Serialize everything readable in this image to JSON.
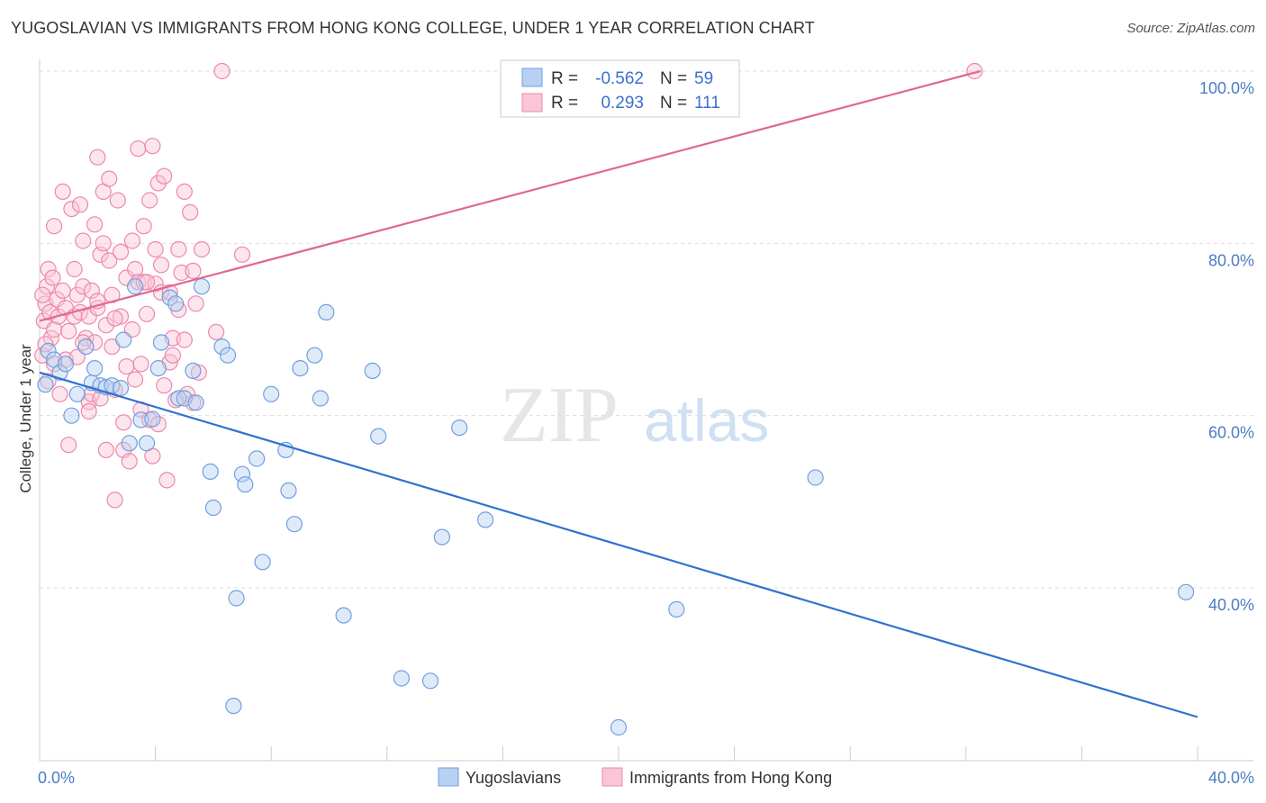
{
  "header": {
    "title": "YUGOSLAVIAN VS IMMIGRANTS FROM HONG KONG COLLEGE, UNDER 1 YEAR CORRELATION CHART",
    "source": "Source: ZipAtlas.com"
  },
  "watermark": {
    "zip": "ZIP",
    "atlas": "atlas"
  },
  "colors": {
    "blue": "#6f9fe0",
    "blue_fill": "#b8d0f2",
    "blue_line": "#2f72d0",
    "pink": "#ee88aa",
    "pink_fill": "#f8c6d6",
    "pink_line": "#e06890",
    "grid": "#dddddd",
    "tick_text": "#4a7cc7"
  },
  "chart_data": {
    "type": "scatter",
    "title": "YUGOSLAVIAN VS IMMIGRANTS FROM HONG KONG COLLEGE, UNDER 1 YEAR CORRELATION CHART",
    "xlabel": "",
    "ylabel": "College, Under 1 year",
    "xlim": [
      0,
      40
    ],
    "ylim": [
      20,
      100
    ],
    "x_tick_labels": [
      "0.0%",
      "40.0%"
    ],
    "y_ticks": [
      40,
      60,
      80,
      100
    ],
    "y_tick_labels": [
      "40.0%",
      "60.0%",
      "80.0%",
      "100.0%"
    ],
    "grid": true,
    "legend": {
      "position": "top-center",
      "rows": [
        {
          "r_label": "R =",
          "r_value": "-0.562",
          "n_label": "N =",
          "n_value": "59"
        },
        {
          "r_label": "R =",
          "r_value": "0.293",
          "n_label": "N =",
          "n_value": "111"
        }
      ]
    },
    "series": [
      {
        "name": "Yugoslavians",
        "color": "#6f9fe0",
        "trend": {
          "x": [
            0,
            40
          ],
          "y": [
            65.0,
            25.0
          ]
        },
        "points": [
          [
            0.3,
            67.5
          ],
          [
            0.5,
            66.5
          ],
          [
            0.7,
            65.0
          ],
          [
            0.9,
            66.0
          ],
          [
            1.1,
            60.0
          ],
          [
            1.3,
            62.5
          ],
          [
            1.6,
            68.0
          ],
          [
            1.8,
            63.8
          ],
          [
            1.9,
            65.5
          ],
          [
            2.1,
            63.5
          ],
          [
            2.3,
            63.3
          ],
          [
            2.5,
            63.5
          ],
          [
            2.8,
            63.2
          ],
          [
            2.9,
            68.8
          ],
          [
            3.1,
            56.8
          ],
          [
            3.3,
            75.0
          ],
          [
            3.5,
            59.5
          ],
          [
            3.7,
            56.8
          ],
          [
            3.9,
            59.6
          ],
          [
            4.1,
            65.5
          ],
          [
            4.2,
            68.5
          ],
          [
            4.5,
            73.7
          ],
          [
            4.7,
            73.0
          ],
          [
            4.8,
            62.0
          ],
          [
            5.0,
            62.0
          ],
          [
            5.3,
            65.2
          ],
          [
            5.4,
            61.5
          ],
          [
            5.6,
            75.0
          ],
          [
            5.9,
            53.5
          ],
          [
            6.0,
            49.3
          ],
          [
            6.3,
            68.0
          ],
          [
            6.5,
            67.0
          ],
          [
            6.7,
            26.3
          ],
          [
            6.8,
            38.8
          ],
          [
            7.0,
            53.2
          ],
          [
            7.1,
            52.0
          ],
          [
            7.5,
            55.0
          ],
          [
            7.7,
            43.0
          ],
          [
            8.0,
            62.5
          ],
          [
            8.5,
            56.0
          ],
          [
            8.6,
            51.3
          ],
          [
            8.8,
            47.4
          ],
          [
            9.0,
            65.5
          ],
          [
            9.5,
            67.0
          ],
          [
            9.7,
            62.0
          ],
          [
            9.9,
            72.0
          ],
          [
            10.5,
            36.8
          ],
          [
            11.5,
            65.2
          ],
          [
            11.7,
            57.6
          ],
          [
            12.5,
            29.5
          ],
          [
            13.5,
            29.2
          ],
          [
            13.9,
            45.9
          ],
          [
            14.5,
            58.6
          ],
          [
            15.4,
            47.9
          ],
          [
            20.0,
            23.8
          ],
          [
            22.0,
            37.5
          ],
          [
            26.8,
            52.8
          ],
          [
            39.6,
            39.5
          ],
          [
            0.2,
            63.6
          ]
        ]
      },
      {
        "name": "Immigrants from Hong Kong",
        "color": "#ee88aa",
        "trend": {
          "x": [
            0,
            32.5
          ],
          "y": [
            71.0,
            100.0
          ]
        },
        "points": [
          [
            0.1,
            67.0
          ],
          [
            0.15,
            71.0
          ],
          [
            0.2,
            73.0
          ],
          [
            0.25,
            75.0
          ],
          [
            0.3,
            77.0
          ],
          [
            0.3,
            64.0
          ],
          [
            0.35,
            72.0
          ],
          [
            0.4,
            69.0
          ],
          [
            0.45,
            76.0
          ],
          [
            0.5,
            82.0
          ],
          [
            0.5,
            70.0
          ],
          [
            0.6,
            73.5
          ],
          [
            0.65,
            71.5
          ],
          [
            0.7,
            62.5
          ],
          [
            0.8,
            86.0
          ],
          [
            0.8,
            74.5
          ],
          [
            0.9,
            72.5
          ],
          [
            0.9,
            66.5
          ],
          [
            1.0,
            56.6
          ],
          [
            1.0,
            69.8
          ],
          [
            1.1,
            84.0
          ],
          [
            1.2,
            77.0
          ],
          [
            1.2,
            71.5
          ],
          [
            1.3,
            74.0
          ],
          [
            1.3,
            66.8
          ],
          [
            1.4,
            84.5
          ],
          [
            1.4,
            72.0
          ],
          [
            1.5,
            75.0
          ],
          [
            1.5,
            80.3
          ],
          [
            1.6,
            69.0
          ],
          [
            1.7,
            71.5
          ],
          [
            1.7,
            61.6
          ],
          [
            1.8,
            74.5
          ],
          [
            1.8,
            62.5
          ],
          [
            1.9,
            82.2
          ],
          [
            1.9,
            68.5
          ],
          [
            2.0,
            90.0
          ],
          [
            2.0,
            72.5
          ],
          [
            2.1,
            78.7
          ],
          [
            2.1,
            62.0
          ],
          [
            2.2,
            86.0
          ],
          [
            2.2,
            80.0
          ],
          [
            2.3,
            70.5
          ],
          [
            2.3,
            56.0
          ],
          [
            2.4,
            87.5
          ],
          [
            2.4,
            78.0
          ],
          [
            2.5,
            74.0
          ],
          [
            2.5,
            68.0
          ],
          [
            2.6,
            50.2
          ],
          [
            2.6,
            63.0
          ],
          [
            2.7,
            85.0
          ],
          [
            2.8,
            79.0
          ],
          [
            2.8,
            71.5
          ],
          [
            2.9,
            59.2
          ],
          [
            2.9,
            56.0
          ],
          [
            3.0,
            76.0
          ],
          [
            3.0,
            65.7
          ],
          [
            3.1,
            54.7
          ],
          [
            3.2,
            80.3
          ],
          [
            3.2,
            70.0
          ],
          [
            3.3,
            77.0
          ],
          [
            3.3,
            64.2
          ],
          [
            3.4,
            91.0
          ],
          [
            3.4,
            75.5
          ],
          [
            3.5,
            66.0
          ],
          [
            3.5,
            60.7
          ],
          [
            3.6,
            82.0
          ],
          [
            3.6,
            75.5
          ],
          [
            3.7,
            71.8
          ],
          [
            3.8,
            85.0
          ],
          [
            3.8,
            59.5
          ],
          [
            3.9,
            91.3
          ],
          [
            3.9,
            55.3
          ],
          [
            4.0,
            79.3
          ],
          [
            4.0,
            75.3
          ],
          [
            4.1,
            87.0
          ],
          [
            4.1,
            59.0
          ],
          [
            4.2,
            77.5
          ],
          [
            4.2,
            74.3
          ],
          [
            4.3,
            87.8
          ],
          [
            4.3,
            63.5
          ],
          [
            4.4,
            52.5
          ],
          [
            4.5,
            74.3
          ],
          [
            4.5,
            66.2
          ],
          [
            4.6,
            69.0
          ],
          [
            4.7,
            61.8
          ],
          [
            4.8,
            79.3
          ],
          [
            4.8,
            72.3
          ],
          [
            4.9,
            76.6
          ],
          [
            5.0,
            86.0
          ],
          [
            5.0,
            68.8
          ],
          [
            5.1,
            62.5
          ],
          [
            5.2,
            83.6
          ],
          [
            5.3,
            76.8
          ],
          [
            5.3,
            61.5
          ],
          [
            5.4,
            73.0
          ],
          [
            5.6,
            79.3
          ],
          [
            6.1,
            69.7
          ],
          [
            6.3,
            100.0
          ],
          [
            7.0,
            78.7
          ],
          [
            0.1,
            74.0
          ],
          [
            0.2,
            68.3
          ],
          [
            0.5,
            66.0
          ],
          [
            1.5,
            68.5
          ],
          [
            2.0,
            73.3
          ],
          [
            2.6,
            71.3
          ],
          [
            3.7,
            75.5
          ],
          [
            4.6,
            67.0
          ],
          [
            5.5,
            65.0
          ],
          [
            32.3,
            100.0
          ],
          [
            1.7,
            60.5
          ]
        ]
      }
    ]
  },
  "bottom_legend": {
    "items": [
      {
        "label": "Yugoslavians"
      },
      {
        "label": "Immigrants from Hong Kong"
      }
    ]
  }
}
